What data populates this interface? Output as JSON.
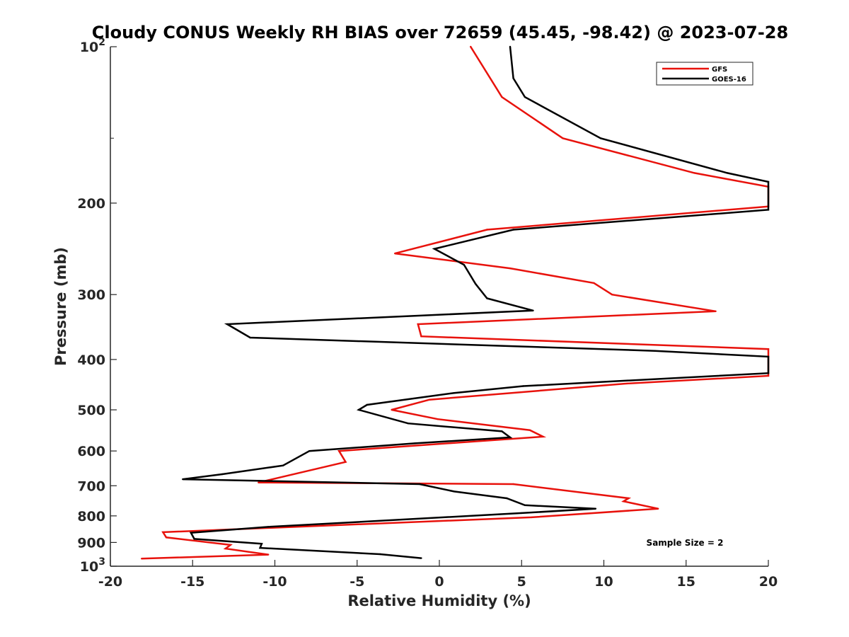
{
  "chart_data": {
    "type": "line",
    "title": "Cloudy CONUS Weekly RH BIAS over 72659 (45.45, -98.42) @ 2023-07-28",
    "xlabel": "Relative Humidity (%)",
    "ylabel": "Pressure (mb)",
    "xlim": [
      -20,
      20
    ],
    "ylim": [
      100,
      1000
    ],
    "yscale": "log",
    "y_reversed": true,
    "x_ticks": [
      "-20",
      "-15",
      "-10",
      "-5",
      "0",
      "5",
      "10",
      "15",
      "20"
    ],
    "y_ticks": [
      {
        "value": 100,
        "base": "10",
        "exp": "2"
      },
      {
        "value": 200,
        "label": "200"
      },
      {
        "value": 300,
        "label": "300"
      },
      {
        "value": 400,
        "label": "400"
      },
      {
        "value": 500,
        "label": "500"
      },
      {
        "value": 600,
        "label": "600"
      },
      {
        "value": 700,
        "label": "700"
      },
      {
        "value": 800,
        "label": "800"
      },
      {
        "value": 900,
        "label": "900"
      },
      {
        "value": 1000,
        "base": "10",
        "exp": "3"
      }
    ],
    "legend_position": "top-right",
    "grid": false,
    "annotation": "Sample Size = 2",
    "series": [
      {
        "name": "GFS",
        "color": "#e8120c",
        "points": [
          {
            "x": 1.9,
            "y": 100
          },
          {
            "x": 3.8,
            "y": 125
          },
          {
            "x": 7.5,
            "y": 150
          },
          {
            "x": 15.5,
            "y": 175
          },
          {
            "x": 20,
            "y": 186
          },
          {
            "x": 20,
            "y": 203
          },
          {
            "x": 2.9,
            "y": 225
          },
          {
            "x": -2.7,
            "y": 250
          },
          {
            "x": 4.3,
            "y": 267
          },
          {
            "x": 9.4,
            "y": 285
          },
          {
            "x": 10.5,
            "y": 300
          },
          {
            "x": 16.8,
            "y": 323
          },
          {
            "x": -1.3,
            "y": 342
          },
          {
            "x": -1.1,
            "y": 361
          },
          {
            "x": 20,
            "y": 382
          },
          {
            "x": 20,
            "y": 430
          },
          {
            "x": 11.4,
            "y": 445
          },
          {
            "x": -0.6,
            "y": 478
          },
          {
            "x": -2.9,
            "y": 500
          },
          {
            "x": -0.1,
            "y": 521
          },
          {
            "x": 5.5,
            "y": 547
          },
          {
            "x": 6.3,
            "y": 563
          },
          {
            "x": -6.1,
            "y": 600
          },
          {
            "x": -5.7,
            "y": 630
          },
          {
            "x": -11.0,
            "y": 690
          },
          {
            "x": 4.5,
            "y": 695
          },
          {
            "x": 11.5,
            "y": 740
          },
          {
            "x": 11.2,
            "y": 750
          },
          {
            "x": 13.3,
            "y": 775
          },
          {
            "x": 5.6,
            "y": 805
          },
          {
            "x": -16.8,
            "y": 860
          },
          {
            "x": -16.6,
            "y": 880
          },
          {
            "x": -12.7,
            "y": 910
          },
          {
            "x": -13.0,
            "y": 925
          },
          {
            "x": -10.4,
            "y": 950
          },
          {
            "x": -18.1,
            "y": 967
          }
        ]
      },
      {
        "name": "GOES-16",
        "color": "#000000",
        "points": [
          {
            "x": 4.3,
            "y": 100
          },
          {
            "x": 4.5,
            "y": 115
          },
          {
            "x": 5.2,
            "y": 125
          },
          {
            "x": 9.8,
            "y": 150
          },
          {
            "x": 17.5,
            "y": 175
          },
          {
            "x": 20,
            "y": 182
          },
          {
            "x": 20,
            "y": 206
          },
          {
            "x": 4.5,
            "y": 225
          },
          {
            "x": -0.3,
            "y": 245
          },
          {
            "x": 1.5,
            "y": 263
          },
          {
            "x": 2.2,
            "y": 286
          },
          {
            "x": 2.9,
            "y": 305
          },
          {
            "x": 5.7,
            "y": 322
          },
          {
            "x": -12.9,
            "y": 342
          },
          {
            "x": -11.5,
            "y": 363
          },
          {
            "x": 13.1,
            "y": 385
          },
          {
            "x": 20,
            "y": 395
          },
          {
            "x": 20,
            "y": 425
          },
          {
            "x": 5.1,
            "y": 450
          },
          {
            "x": 0.9,
            "y": 464
          },
          {
            "x": -4.4,
            "y": 489
          },
          {
            "x": -4.9,
            "y": 500
          },
          {
            "x": -1.9,
            "y": 531
          },
          {
            "x": 3.8,
            "y": 550
          },
          {
            "x": 4.3,
            "y": 565
          },
          {
            "x": -1.5,
            "y": 580
          },
          {
            "x": -7.9,
            "y": 600
          },
          {
            "x": -9.5,
            "y": 640
          },
          {
            "x": -13.2,
            "y": 665
          },
          {
            "x": -15.6,
            "y": 680
          },
          {
            "x": -1.2,
            "y": 695
          },
          {
            "x": 0.9,
            "y": 718
          },
          {
            "x": 4.1,
            "y": 740
          },
          {
            "x": 5.2,
            "y": 763
          },
          {
            "x": 9.5,
            "y": 775
          },
          {
            "x": 5.0,
            "y": 790
          },
          {
            "x": -10.4,
            "y": 840
          },
          {
            "x": -15.1,
            "y": 862
          },
          {
            "x": -14.9,
            "y": 886
          },
          {
            "x": -10.8,
            "y": 905
          },
          {
            "x": -10.9,
            "y": 922
          },
          {
            "x": -3.6,
            "y": 948
          },
          {
            "x": -1.1,
            "y": 965
          }
        ]
      }
    ]
  }
}
